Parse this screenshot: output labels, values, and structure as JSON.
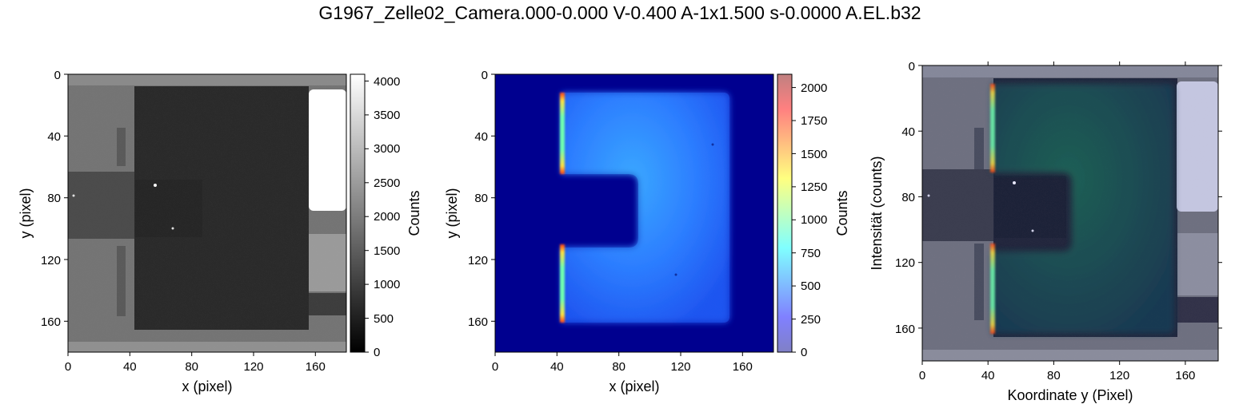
{
  "figure": {
    "title": "G1967_Zelle02_Camera.000-0.000 V-0.400 A-1x1.500 s-0.0000 A.EL.b32"
  },
  "colors": {
    "dark_cell": "#2b2b2b",
    "background_tile": "#7a7a7a",
    "saturated_patch": "#ffffff",
    "jet_background": "#00008f",
    "overlay_tint": "#0a1030"
  },
  "chart_data": [
    {
      "type": "heatmap",
      "title": "",
      "xlabel": "x (pixel)",
      "ylabel": "y (pixel)",
      "xlim": [
        0,
        180
      ],
      "ylim": [
        180,
        0
      ],
      "xticks": [
        0,
        40,
        80,
        120,
        160
      ],
      "yticks": [
        0,
        40,
        80,
        120,
        160
      ],
      "colormap": "gray",
      "colorbar": {
        "label": "Counts",
        "range": [
          0,
          4100
        ],
        "ticks": [
          0,
          500,
          1000,
          1500,
          2000,
          2500,
          3000,
          3500,
          4000
        ]
      },
      "regions": [
        {
          "name": "surrounding frame",
          "x": [
            0,
            180
          ],
          "y": [
            0,
            180
          ],
          "value": 1800
        },
        {
          "name": "left contact strip",
          "x": [
            0,
            45
          ],
          "y": [
            70,
            105
          ],
          "value": 1100
        },
        {
          "name": "cell area",
          "x": [
            43,
            155
          ],
          "y": [
            8,
            165
          ],
          "value": 950
        },
        {
          "name": "saturated contact pad",
          "x": [
            157,
            180
          ],
          "y": [
            10,
            88
          ],
          "value": 4100
        }
      ]
    },
    {
      "type": "heatmap",
      "title": "",
      "xlabel": "x (pixel)",
      "ylabel": "y (pixel)",
      "xlim": [
        0,
        180
      ],
      "ylim": [
        180,
        0
      ],
      "xticks": [
        0,
        40,
        80,
        120,
        160
      ],
      "yticks": [
        0,
        40,
        80,
        120,
        160
      ],
      "colormap": "jet",
      "colorbar": {
        "label": "Counts",
        "range": [
          0,
          2100
        ],
        "ticks": [
          0,
          250,
          500,
          750,
          1000,
          1250,
          1500,
          1750,
          2000
        ]
      },
      "regions": [
        {
          "name": "background",
          "value": 0
        },
        {
          "name": "emission area",
          "x": [
            43,
            153
          ],
          "y": [
            12,
            161
          ],
          "value": 450
        },
        {
          "name": "left edge hot spots",
          "x": [
            43,
            46
          ],
          "y": [
            12,
            161
          ],
          "value": 2100
        }
      ]
    },
    {
      "type": "heatmap",
      "title": "",
      "xlabel": "Koordinate y (Pixel)",
      "ylabel": "Intensität (counts)",
      "xlim": [
        0,
        180
      ],
      "ylim": [
        180,
        0
      ],
      "xticks": [
        0,
        40,
        80,
        120,
        160
      ],
      "yticks": [
        0,
        40,
        80,
        120,
        160
      ],
      "colormap": "overlay"
    }
  ]
}
